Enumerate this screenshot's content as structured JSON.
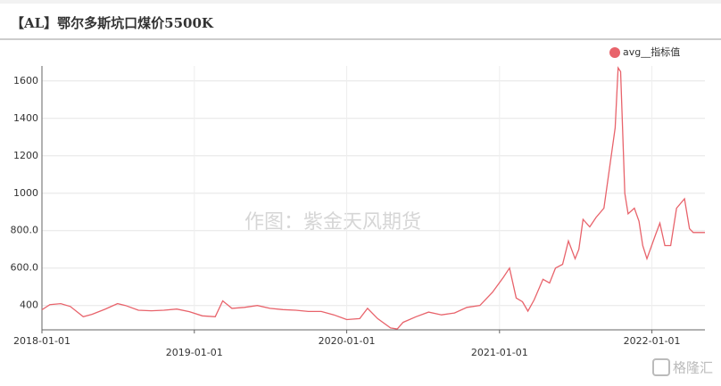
{
  "chart_data": {
    "type": "line",
    "title": "【AL】鄂尔多斯坑口煤价5500K",
    "watermark": "作图：紫金天风期货",
    "logo": "格隆汇",
    "legend": "top-right",
    "grid": true,
    "x": [
      "2018-01-01",
      "2018-01-20",
      "2018-02-15",
      "2018-03-10",
      "2018-04-10",
      "2018-05-01",
      "2018-06-01",
      "2018-07-01",
      "2018-07-20",
      "2018-08-20",
      "2018-09-20",
      "2018-10-20",
      "2018-11-20",
      "2018-12-20",
      "2019-01-20",
      "2019-02-20",
      "2019-03-10",
      "2019-04-01",
      "2019-05-01",
      "2019-06-01",
      "2019-07-01",
      "2019-08-01",
      "2019-09-01",
      "2019-10-01",
      "2019-11-01",
      "2019-12-01",
      "2020-01-01",
      "2020-02-01",
      "2020-02-20",
      "2020-03-15",
      "2020-04-15",
      "2020-05-01",
      "2020-05-15",
      "2020-06-15",
      "2020-07-15",
      "2020-08-15",
      "2020-09-15",
      "2020-10-15",
      "2020-11-15",
      "2020-12-15",
      "2021-01-10",
      "2021-01-25",
      "2021-02-10",
      "2021-02-25",
      "2021-03-10",
      "2021-03-25",
      "2021-04-15",
      "2021-05-01",
      "2021-05-15",
      "2021-06-01",
      "2021-06-15",
      "2021-07-01",
      "2021-07-10",
      "2021-07-20",
      "2021-08-05",
      "2021-08-20",
      "2021-09-08",
      "2021-10-05",
      "2021-10-12",
      "2021-10-18",
      "2021-10-28",
      "2021-11-05",
      "2021-11-20",
      "2021-12-01",
      "2021-12-10",
      "2021-12-20",
      "2022-01-10",
      "2022-01-20",
      "2022-02-01",
      "2022-02-15",
      "2022-03-01",
      "2022-03-20",
      "2022-04-01",
      "2022-04-10",
      "2022-05-08"
    ],
    "series": [
      {
        "name": "avg__指标值",
        "color": "#e8636b",
        "values": [
          377,
          405,
          410,
          395,
          340,
          353,
          380,
          410,
          400,
          375,
          372,
          375,
          381,
          367,
          345,
          340,
          425,
          385,
          390,
          400,
          385,
          378,
          375,
          368,
          368,
          350,
          325,
          330,
          385,
          330,
          280,
          275,
          310,
          340,
          365,
          350,
          360,
          390,
          400,
          470,
          550,
          600,
          440,
          420,
          370,
          430,
          540,
          520,
          600,
          620,
          745,
          650,
          700,
          860,
          820,
          870,
          920,
          1350,
          1670,
          1650,
          1000,
          890,
          920,
          850,
          720,
          650,
          780,
          840,
          720,
          720,
          920,
          970,
          810,
          790,
          790
        ]
      }
    ],
    "xlim": [
      "2018-01-01",
      "2022-05-08"
    ],
    "xticks": [
      "2018-01-01",
      "2019-01-01",
      "2020-01-01",
      "2021-01-01",
      "2022-01-01"
    ],
    "ylim": [
      270,
      1680
    ],
    "yticks": [
      400,
      {
        "value": 600,
        "label": "600.0"
      },
      {
        "value": 800,
        "label": "800.0"
      },
      1000,
      1200,
      1400,
      1600
    ]
  }
}
